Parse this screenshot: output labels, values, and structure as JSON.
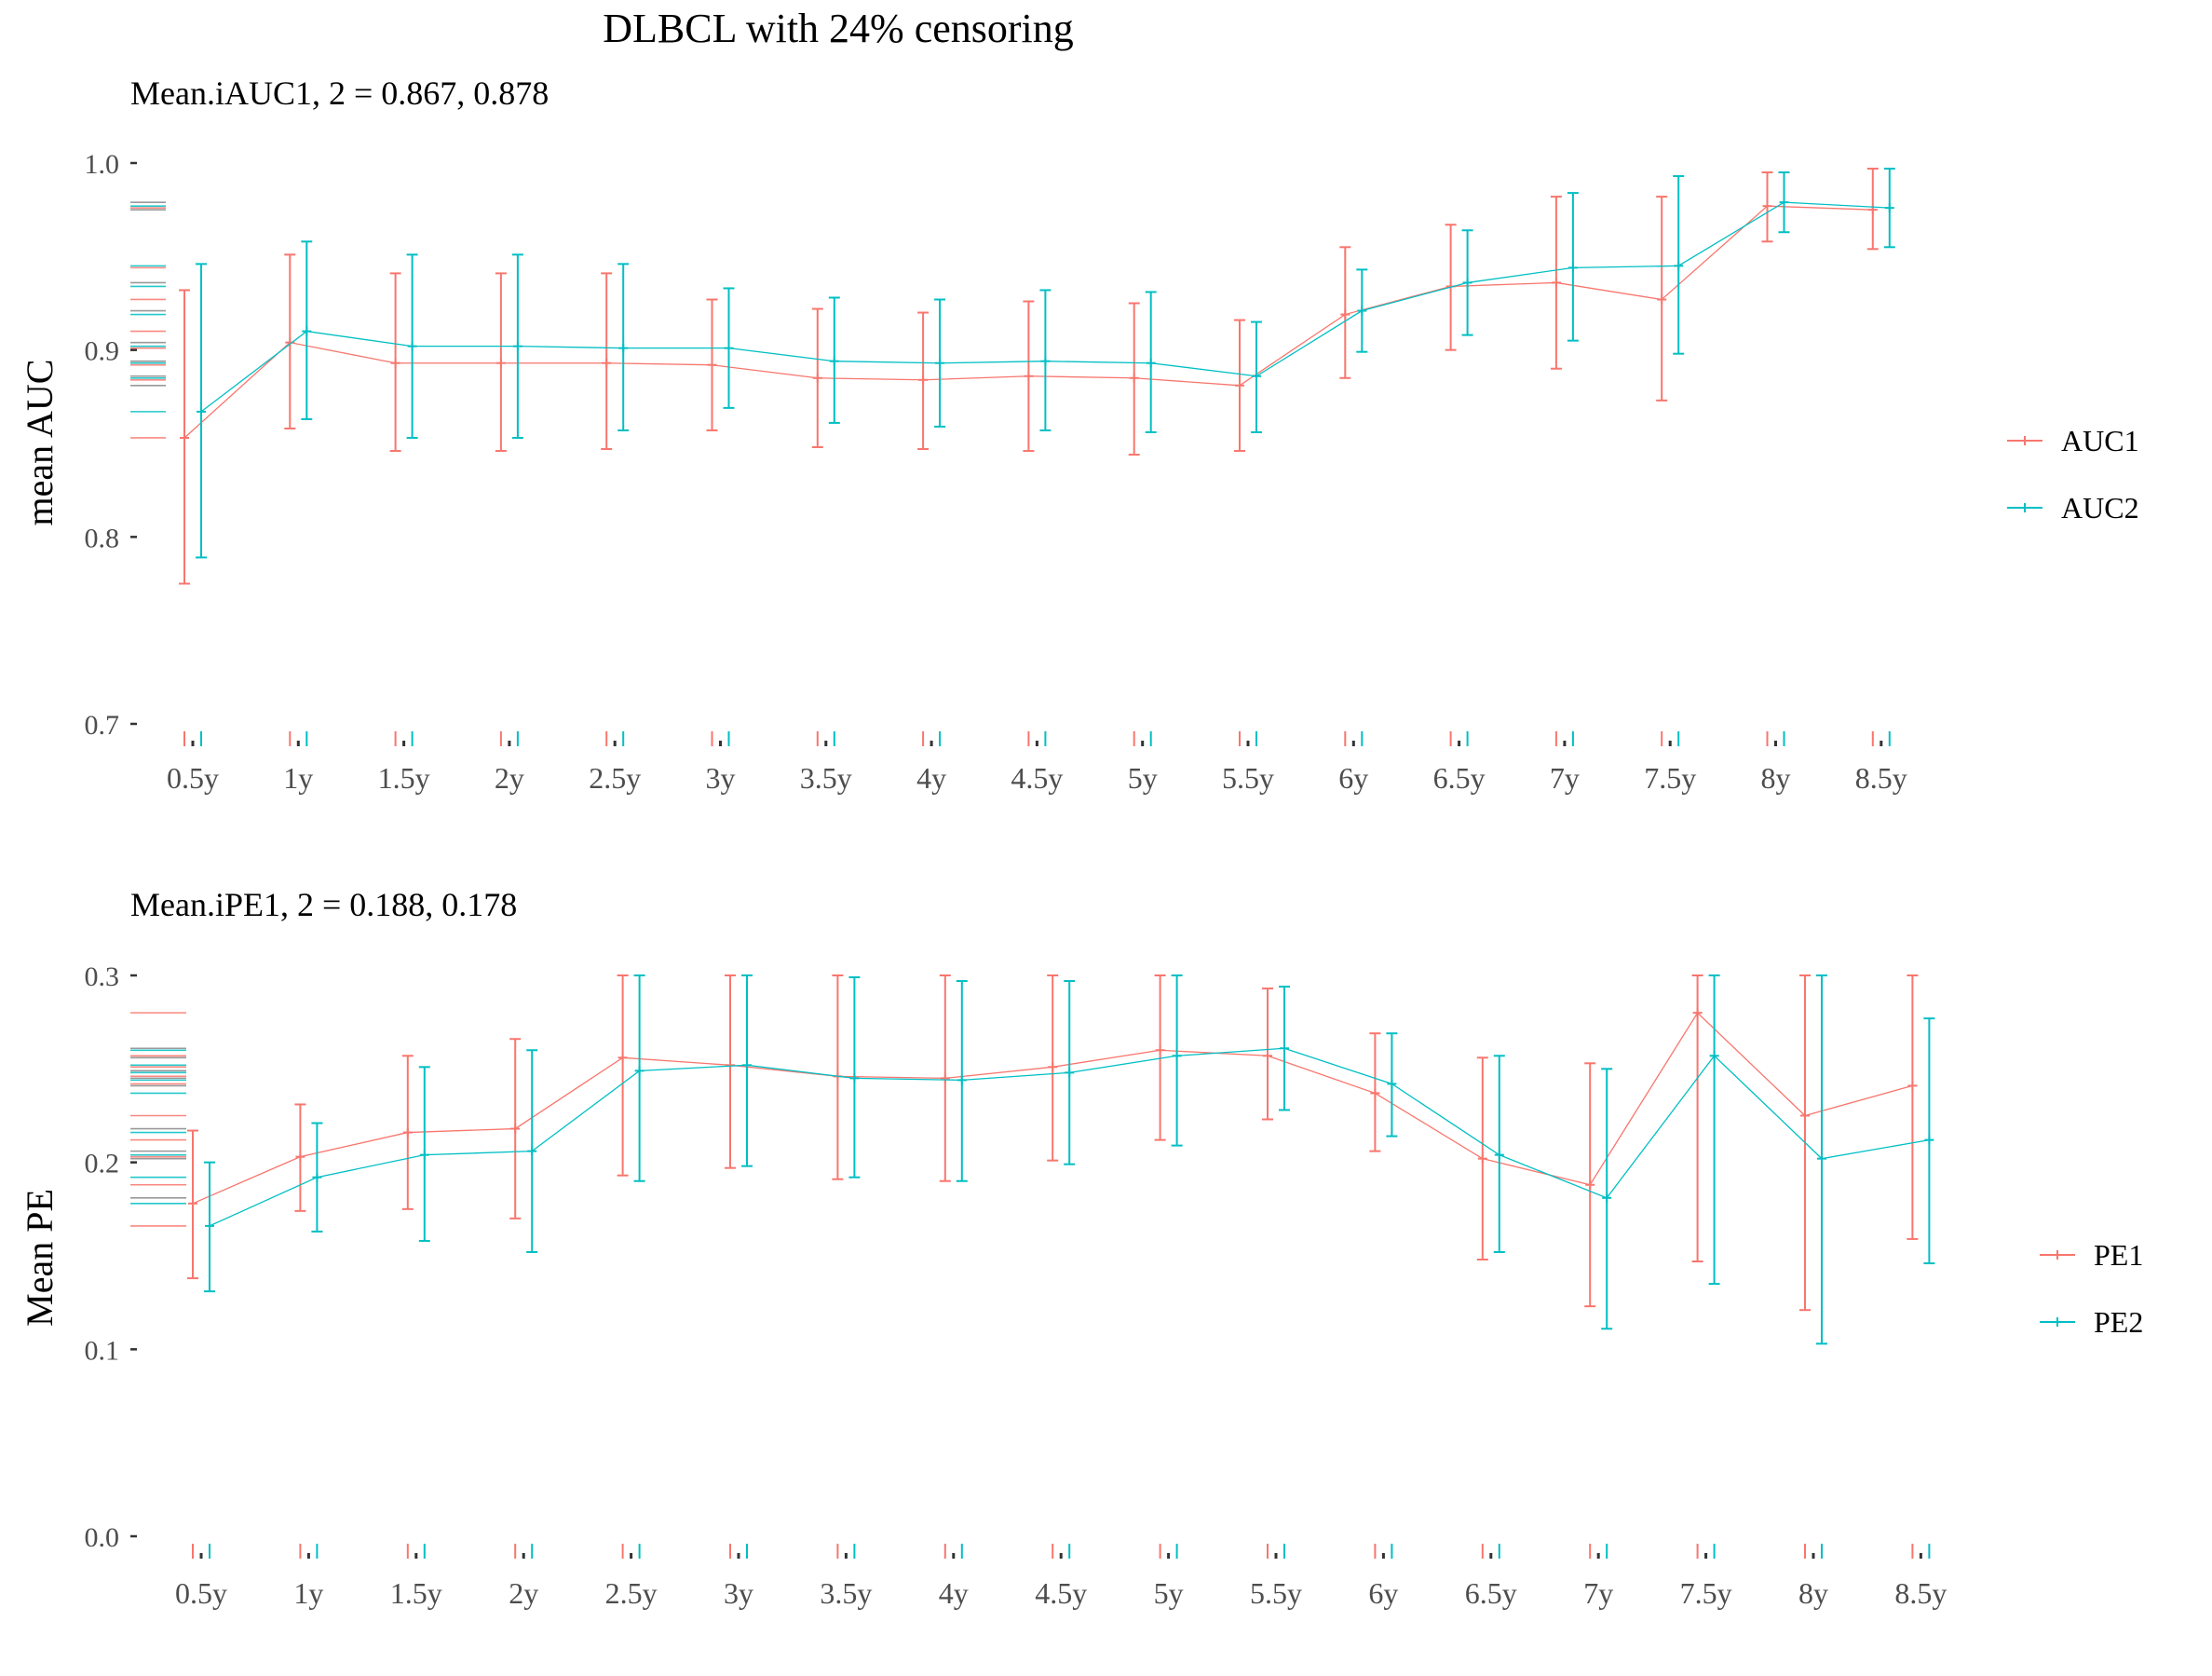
{
  "figure_title": "DLBCL with 24% censoring",
  "colors": {
    "series1": "#F8766D",
    "series2": "#00BFC4",
    "axis": "#333333",
    "rug_gray": "#888888"
  },
  "chart_data": [
    {
      "type": "line",
      "panel": "top",
      "subtitle": "Mean.iAUC1, 2 =  0.867, 0.878",
      "ylabel": "mean AUC",
      "xlabel": "",
      "ylim": [
        0.7,
        1.0
      ],
      "yticks": [
        "0.7",
        "0.8",
        "0.9",
        "1.0"
      ],
      "categories": [
        "0.5y",
        "1y",
        "1.5y",
        "2y",
        "2.5y",
        "3y",
        "3.5y",
        "4y",
        "4.5y",
        "5y",
        "5.5y",
        "6y",
        "6.5y",
        "7y",
        "7.5y",
        "8y",
        "8.5y"
      ],
      "grid": false,
      "legend_position": "right",
      "series": [
        {
          "name": "AUC1",
          "values": [
            0.853,
            0.904,
            0.893,
            0.893,
            0.893,
            0.892,
            0.885,
            0.884,
            0.886,
            0.885,
            0.881,
            0.919,
            0.934,
            0.936,
            0.927,
            0.977,
            0.975
          ],
          "lower": [
            0.775,
            0.858,
            0.846,
            0.846,
            0.847,
            0.857,
            0.848,
            0.847,
            0.846,
            0.844,
            0.846,
            0.885,
            0.9,
            0.89,
            0.873,
            0.958,
            0.954
          ],
          "upper": [
            0.932,
            0.951,
            0.941,
            0.941,
            0.941,
            0.927,
            0.922,
            0.92,
            0.926,
            0.925,
            0.916,
            0.955,
            0.967,
            0.982,
            0.982,
            0.995,
            0.997
          ]
        },
        {
          "name": "AUC2",
          "values": [
            0.867,
            0.91,
            0.902,
            0.902,
            0.901,
            0.901,
            0.894,
            0.893,
            0.894,
            0.893,
            0.886,
            0.921,
            0.936,
            0.944,
            0.945,
            0.979,
            0.976
          ],
          "lower": [
            0.789,
            0.863,
            0.853,
            0.853,
            0.857,
            0.869,
            0.861,
            0.859,
            0.857,
            0.856,
            0.856,
            0.899,
            0.908,
            0.905,
            0.898,
            0.963,
            0.955
          ],
          "upper": [
            0.946,
            0.958,
            0.951,
            0.951,
            0.946,
            0.933,
            0.928,
            0.927,
            0.932,
            0.931,
            0.915,
            0.943,
            0.964,
            0.984,
            0.993,
            0.995,
            0.997
          ]
        }
      ],
      "rug_y": [
        0.853,
        0.867,
        0.881,
        0.884,
        0.885,
        0.886,
        0.892,
        0.893,
        0.894,
        0.901,
        0.902,
        0.904,
        0.91,
        0.919,
        0.921,
        0.927,
        0.934,
        0.936,
        0.944,
        0.945,
        0.975,
        0.976,
        0.977,
        0.979
      ]
    },
    {
      "type": "line",
      "panel": "bottom",
      "subtitle": "Mean.iPE1, 2 =  0.188, 0.178",
      "ylabel": "Mean PE",
      "xlabel": "",
      "ylim": [
        0.0,
        0.3
      ],
      "yticks": [
        "0.0",
        "0.1",
        "0.2",
        "0.3"
      ],
      "categories": [
        "0.5y",
        "1y",
        "1.5y",
        "2y",
        "2.5y",
        "3y",
        "3.5y",
        "4y",
        "4.5y",
        "5y",
        "5.5y",
        "6y",
        "6.5y",
        "7y",
        "7.5y",
        "8y",
        "8.5y"
      ],
      "grid": false,
      "legend_position": "right",
      "series": [
        {
          "name": "PE1",
          "values": [
            0.178,
            0.203,
            0.216,
            0.218,
            0.256,
            0.252,
            0.246,
            0.245,
            0.251,
            0.26,
            0.257,
            0.237,
            0.202,
            0.188,
            0.28,
            0.225,
            0.241
          ],
          "lower": [
            0.138,
            0.174,
            0.175,
            0.17,
            0.193,
            0.197,
            0.191,
            0.19,
            0.201,
            0.212,
            0.223,
            0.206,
            0.148,
            0.123,
            0.147,
            0.121,
            0.159
          ],
          "upper": [
            0.217,
            0.231,
            0.257,
            0.266,
            0.3,
            0.3,
            0.3,
            0.3,
            0.3,
            0.3,
            0.293,
            0.269,
            0.256,
            0.253,
            0.3,
            0.3,
            0.3
          ]
        },
        {
          "name": "PE2",
          "values": [
            0.166,
            0.192,
            0.204,
            0.206,
            0.249,
            0.252,
            0.245,
            0.244,
            0.248,
            0.257,
            0.261,
            0.242,
            0.204,
            0.181,
            0.257,
            0.202,
            0.212
          ],
          "lower": [
            0.131,
            0.163,
            0.158,
            0.152,
            0.19,
            0.198,
            0.192,
            0.19,
            0.199,
            0.209,
            0.228,
            0.214,
            0.152,
            0.111,
            0.135,
            0.103,
            0.146
          ],
          "upper": [
            0.2,
            0.221,
            0.251,
            0.26,
            0.3,
            0.3,
            0.299,
            0.297,
            0.297,
            0.3,
            0.294,
            0.269,
            0.257,
            0.25,
            0.3,
            0.3,
            0.277
          ]
        }
      ],
      "rug_y": [
        0.166,
        0.178,
        0.181,
        0.188,
        0.192,
        0.202,
        0.203,
        0.204,
        0.206,
        0.212,
        0.216,
        0.218,
        0.225,
        0.237,
        0.241,
        0.242,
        0.244,
        0.245,
        0.246,
        0.248,
        0.249,
        0.251,
        0.252,
        0.256,
        0.257,
        0.26,
        0.261,
        0.28
      ]
    }
  ]
}
